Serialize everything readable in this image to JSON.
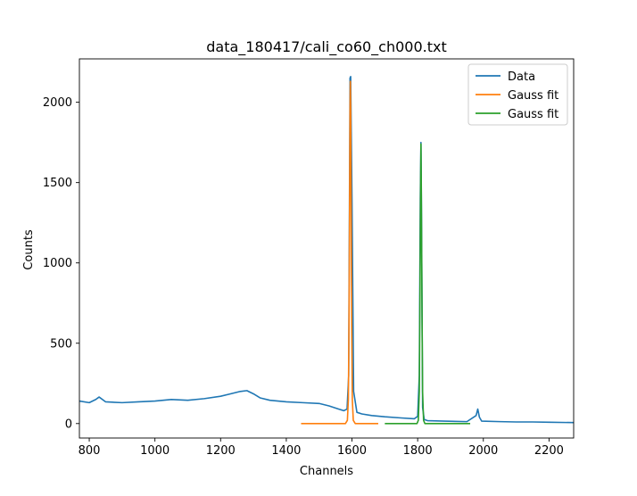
{
  "chart_data": {
    "type": "line",
    "title": "data_180417/cali_co60_ch000.txt",
    "xlabel": "Channels",
    "ylabel": "Counts",
    "xlim": [
      770,
      2275
    ],
    "ylim": [
      -90,
      2270
    ],
    "xticks": [
      800,
      1000,
      1200,
      1400,
      1600,
      1800,
      2000,
      2200
    ],
    "yticks": [
      0,
      500,
      1000,
      1500,
      2000
    ],
    "grid": false,
    "legend": "top-right",
    "series": [
      {
        "name": "Data",
        "color": "#1f77b4",
        "x": [
          770,
          800,
          820,
          830,
          850,
          900,
          950,
          1000,
          1050,
          1100,
          1150,
          1200,
          1230,
          1260,
          1280,
          1300,
          1320,
          1350,
          1400,
          1450,
          1500,
          1530,
          1560,
          1575,
          1585,
          1590,
          1594,
          1596,
          1600,
          1605,
          1615,
          1630,
          1660,
          1700,
          1750,
          1790,
          1800,
          1805,
          1808,
          1810,
          1812,
          1815,
          1820,
          1830,
          1880,
          1950,
          1978,
          1983,
          1988,
          1995,
          2050,
          2100,
          2150,
          2200,
          2275
        ],
        "y": [
          140,
          130,
          150,
          165,
          135,
          130,
          135,
          140,
          150,
          145,
          155,
          170,
          185,
          200,
          205,
          185,
          160,
          145,
          135,
          130,
          125,
          110,
          90,
          80,
          90,
          300,
          2150,
          2160,
          1400,
          200,
          70,
          60,
          50,
          42,
          35,
          30,
          45,
          300,
          1400,
          1750,
          1200,
          100,
          25,
          18,
          15,
          12,
          50,
          90,
          40,
          15,
          12,
          10,
          10,
          8,
          6
        ]
      },
      {
        "name": "Gauss fit",
        "color": "#ff7f0e",
        "x": [
          1445,
          1500,
          1560,
          1580,
          1586,
          1589,
          1591,
          1593,
          1594,
          1595,
          1596,
          1597,
          1599,
          1601,
          1604,
          1610,
          1630,
          1680
        ],
        "y": [
          0,
          0,
          0,
          0,
          20,
          150,
          650,
          1500,
          1950,
          2130,
          1950,
          1500,
          650,
          150,
          20,
          0,
          0,
          0
        ]
      },
      {
        "name": "Gauss fit",
        "color": "#2ca02c",
        "x": [
          1700,
          1780,
          1798,
          1802,
          1805,
          1807,
          1809,
          1810,
          1811,
          1813,
          1815,
          1818,
          1822,
          1850,
          1900,
          1960
        ],
        "y": [
          0,
          0,
          0,
          20,
          200,
          800,
          1500,
          1740,
          1500,
          800,
          200,
          20,
          0,
          0,
          0,
          0
        ]
      }
    ]
  }
}
